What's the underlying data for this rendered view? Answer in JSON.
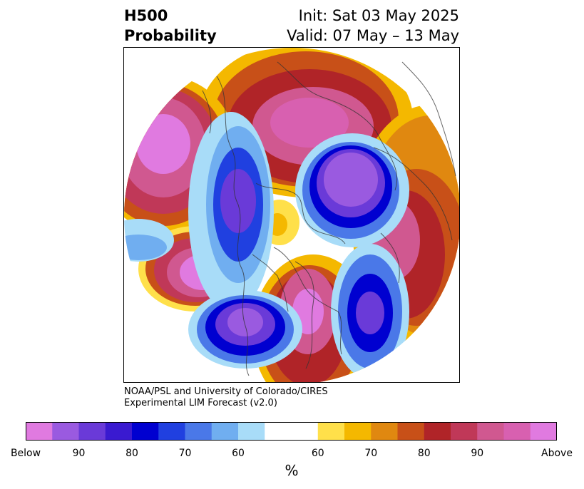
{
  "header": {
    "title_line1": "H500",
    "title_line2": "Probability",
    "init": "Init: Sat 03 May 2025",
    "valid": "Valid: 07 May – 13 May"
  },
  "credit": {
    "line1": "NOAA/PSL and University of Colorado/CIRES",
    "line2": "Experimental LIM Forecast (v2.0)"
  },
  "colorbar": {
    "colors": [
      "#e07ae0",
      "#9a5ae0",
      "#6a3ad8",
      "#3a1ad0",
      "#0000d0",
      "#2040e0",
      "#4a78e8",
      "#70aef0",
      "#a8dcf8",
      "#ffffff",
      "#ffe04a",
      "#f4b800",
      "#e08810",
      "#c85018",
      "#b02428",
      "#c03858",
      "#d05890",
      "#d860b0",
      "#e07ae0"
    ],
    "labels": [
      "Below",
      "90",
      "80",
      "70",
      "60",
      "60",
      "70",
      "80",
      "90",
      "Above"
    ],
    "unit": "%"
  }
}
